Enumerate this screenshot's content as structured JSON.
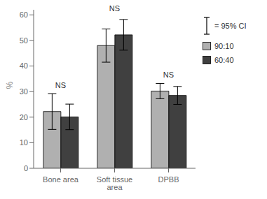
{
  "chart_data": {
    "type": "bar",
    "categories": [
      "Bone area",
      "Soft tissue area",
      "DPBB"
    ],
    "series": [
      {
        "name": "90:10",
        "color": "#b0b0b0",
        "values": [
          22.2,
          48.0,
          30.2
        ],
        "errors": [
          7.0,
          6.5,
          3.0
        ]
      },
      {
        "name": "60:40",
        "color": "#404040",
        "values": [
          20.1,
          52.2,
          28.5
        ],
        "errors": [
          5.0,
          6.0,
          3.5
        ]
      }
    ],
    "ylabel": "%",
    "ylim": [
      0,
      62
    ],
    "yticks": [
      0,
      10,
      20,
      30,
      40,
      50,
      60
    ],
    "grid": false,
    "annotations": [
      {
        "text": "NS",
        "x": "Bone area",
        "y": 31
      },
      {
        "text": "NS",
        "x": "Soft tissue area",
        "y": 61
      },
      {
        "text": "NS",
        "x": "DPBB",
        "y": 35
      },
      {
        "text": "= 95% CI"
      }
    ]
  }
}
